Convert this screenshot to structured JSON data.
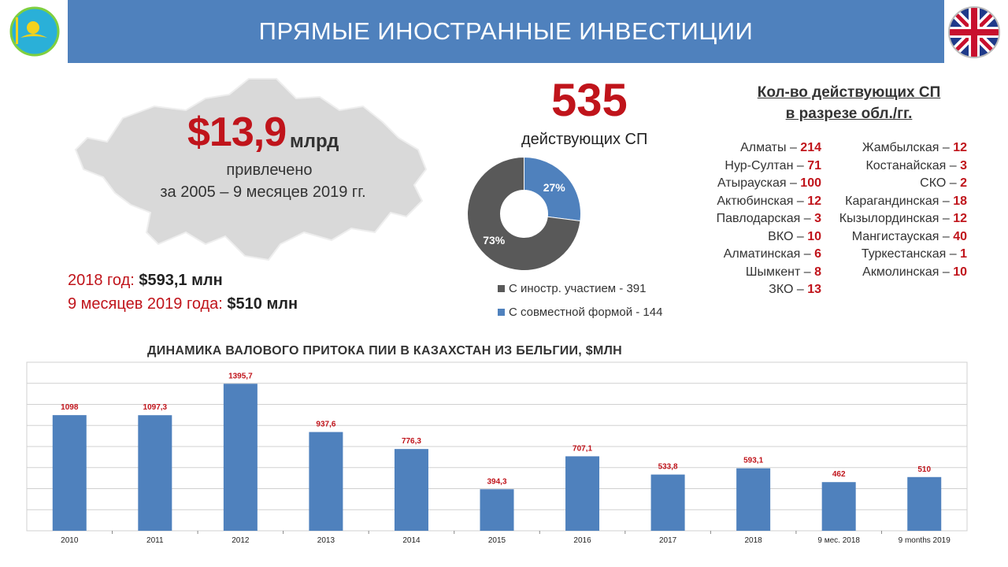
{
  "header": {
    "title": "ПРЯМЫЕ ИНОСТРАННЫЕ ИНВЕСТИЦИИ"
  },
  "summary": {
    "amount": "$13,9",
    "unit": "млрд",
    "attracted": "привлечено",
    "period": "за 2005 – 9 месяцев 2019 гг."
  },
  "stats": [
    {
      "label": "2018 год: ",
      "value": "$593,1 млн"
    },
    {
      "label": "9 месяцев 2019 года: ",
      "value": "$510 млн"
    }
  ],
  "joint_ventures": {
    "count": "535",
    "label": "действующих СП",
    "donut": [
      {
        "name": "С иностр. участием - 391",
        "percent": 73,
        "label": "73%",
        "color": "#595959"
      },
      {
        "name": "С совместной формой - 144",
        "percent": 27,
        "label": "27%",
        "color": "#4f81bd"
      }
    ]
  },
  "regions": {
    "title_line1": "Кол-во действующих СП",
    "title_line2": "в разрезе обл./гг.",
    "left": [
      {
        "name": "Алматы – ",
        "count": "214"
      },
      {
        "name": "Нур-Султан – ",
        "count": "71"
      },
      {
        "name": "Атырауская – ",
        "count": "100"
      },
      {
        "name": "Актюбинская – ",
        "count": "12"
      },
      {
        "name": "Павлодарская – ",
        "count": "3"
      },
      {
        "name": "ВКО – ",
        "count": "10"
      },
      {
        "name": "Алматинская – ",
        "count": "6"
      },
      {
        "name": "Шымкент – ",
        "count": "8"
      },
      {
        "name": "ЗКО – ",
        "count": "13"
      }
    ],
    "right": [
      {
        "name": "Жамбылская – ",
        "count": "12"
      },
      {
        "name": "Костанайская – ",
        "count": "3"
      },
      {
        "name": "СКО – ",
        "count": "2"
      },
      {
        "name": "Карагандинская – ",
        "count": "18"
      },
      {
        "name": "Кызылординская – ",
        "count": "12"
      },
      {
        "name": "Мангистауская – ",
        "count": "40"
      },
      {
        "name": "Туркестанская – ",
        "count": "1"
      },
      {
        "name": "Акмолинская – ",
        "count": "10"
      }
    ]
  },
  "colors": {
    "accent": "#c0141b",
    "bar": "#4f81bd",
    "header": "#4f81bd"
  },
  "chart_data": {
    "type": "bar",
    "title": "ДИНАМИКА ВАЛОВОГО ПРИТОКА ПИИ В КАЗАХСТАН ИЗ БЕЛЬГИИ, $МЛН",
    "categories": [
      "2010",
      "2011",
      "2012",
      "2013",
      "2014",
      "2015",
      "2016",
      "2017",
      "2018",
      "9 мес. 2018",
      "9 months 2019"
    ],
    "values": [
      1098,
      1097.3,
      1395.7,
      937.6,
      776.3,
      394.3,
      707.1,
      533.8,
      593.1,
      462,
      510
    ],
    "value_labels": [
      "1098",
      "1097,3",
      "1395,7",
      "937,6",
      "776,3",
      "394,3",
      "707,1",
      "533,8",
      "593,1",
      "462",
      "510"
    ],
    "ylim": [
      0,
      1600
    ],
    "grid": true,
    "xlabel": "",
    "ylabel": ""
  }
}
